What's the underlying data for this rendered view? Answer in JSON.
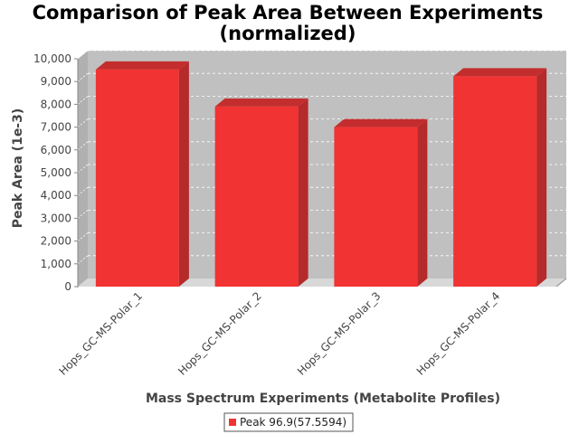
{
  "chart_data": {
    "type": "bar",
    "title": [
      "Comparison of Peak Area Between Experiments",
      "(normalized)"
    ],
    "xlabel": "Mass Spectrum Experiments (Metabolite Profiles)",
    "ylabel": "Peak Area (1e-3)",
    "categories": [
      "Hops_GC-MS-Polar_1",
      "Hops_GC-MS-Polar_2",
      "Hops_GC-MS-Polar_3",
      "Hops_GC-MS-Polar_4"
    ],
    "series": [
      {
        "name": "Peak 96.9(57.5594)",
        "values": [
          9530,
          7900,
          7000,
          9230
        ],
        "color": "#f23333"
      }
    ],
    "ylim": [
      0,
      10000
    ],
    "yticks": [
      "0",
      "1,000",
      "2,000",
      "3,000",
      "4,000",
      "5,000",
      "6,000",
      "7,000",
      "8,000",
      "9,000",
      "10,000"
    ],
    "ytick_values": [
      0,
      1000,
      2000,
      3000,
      4000,
      5000,
      6000,
      7000,
      8000,
      9000,
      10000
    ],
    "grid": true,
    "legend_position": "bottom",
    "plot_background": "#c0c0c0"
  }
}
